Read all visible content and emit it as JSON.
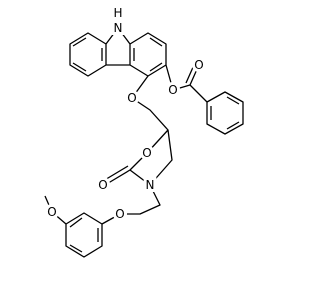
{
  "atoms": [
    "H",
    "N",
    "O",
    "O",
    "O",
    "O",
    "O",
    "N",
    "O",
    "O"
  ]
}
